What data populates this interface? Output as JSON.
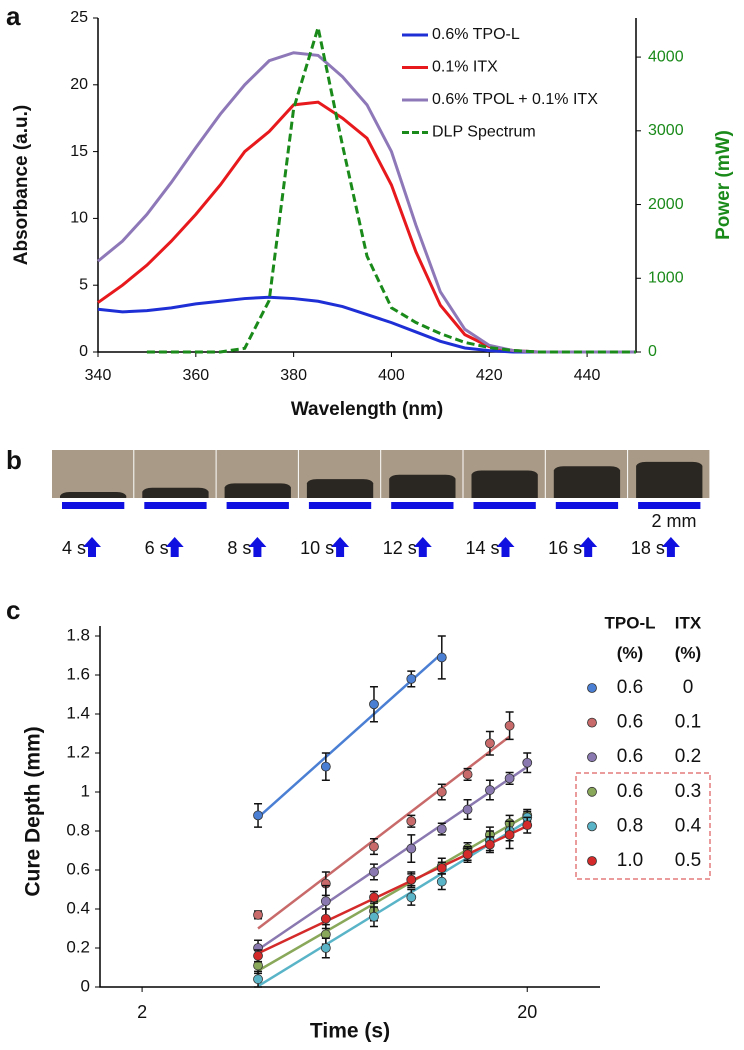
{
  "chart_data": [
    {
      "type": "line",
      "label": "a",
      "xlabel": "Wavelength (nm)",
      "ylabel": "Absorbance (a.u.)",
      "y2label": "Power (mW)",
      "x": [
        340,
        345,
        350,
        355,
        360,
        365,
        370,
        375,
        380,
        385,
        390,
        395,
        400,
        405,
        410,
        415,
        420,
        425,
        430,
        435,
        440,
        445,
        450
      ],
      "xlim": [
        340,
        450
      ],
      "xticks": [
        340,
        360,
        380,
        400,
        420,
        440
      ],
      "ylim": [
        0,
        25
      ],
      "yticks": [
        0,
        5,
        10,
        15,
        20,
        25
      ],
      "y2lim": [
        0,
        4530
      ],
      "y2ticks": [
        0,
        1000,
        2000,
        3000,
        4000
      ],
      "series": [
        {
          "name": "0.6% TPO-L",
          "color": "#1f2fd6",
          "values": [
            3.2,
            3.0,
            3.1,
            3.3,
            3.6,
            3.8,
            4.0,
            4.1,
            4.0,
            3.8,
            3.4,
            2.8,
            2.2,
            1.5,
            0.8,
            0.3,
            0.1,
            0,
            0,
            0,
            0,
            0,
            0
          ]
        },
        {
          "name": "0.1% ITX",
          "color": "#e8191c",
          "values": [
            3.7,
            5.0,
            6.5,
            8.3,
            10.3,
            12.5,
            15.0,
            16.5,
            18.5,
            18.7,
            17.5,
            16.0,
            12.5,
            7.5,
            3.5,
            1.3,
            0.4,
            0.1,
            0,
            0,
            0,
            0,
            0
          ]
        },
        {
          "name": "0.6% TPOL + 0.1% ITX",
          "color": "#8e78b8",
          "values": [
            6.8,
            8.3,
            10.3,
            12.7,
            15.3,
            17.8,
            20.0,
            21.8,
            22.4,
            22.2,
            20.6,
            18.5,
            15.0,
            9.5,
            4.5,
            1.7,
            0.5,
            0.1,
            0,
            0,
            0,
            0,
            0
          ]
        },
        {
          "name": "DLP Spectrum",
          "color": "#1a8a1a",
          "axis": "y2",
          "dashed": true,
          "values": [
            null,
            null,
            0,
            0,
            0,
            0,
            50,
            700,
            3300,
            4400,
            2800,
            1300,
            600,
            400,
            250,
            130,
            60,
            20,
            0,
            0,
            0,
            0,
            0
          ]
        }
      ]
    },
    {
      "type": "scatter",
      "label": "c",
      "xlabel": "Time (s)",
      "ylabel": "Cure Depth (mm)",
      "xscale": "log",
      "xlim": [
        1.555,
        30.9
      ],
      "xticks": [
        2,
        20
      ],
      "ylim": [
        0,
        1.8
      ],
      "yticks": [
        0,
        0.2,
        0.4,
        0.6,
        0.8,
        1,
        1.2,
        1.4,
        1.6,
        1.8
      ],
      "fit": true,
      "legend_headers": [
        [
          "TPO-L",
          "(%)"
        ],
        [
          "ITX",
          "(%)"
        ]
      ],
      "series": [
        {
          "tpo_l": "0.6",
          "itx": "0",
          "color": "#4a7fd4",
          "x": [
            4,
            6,
            8,
            10,
            12
          ],
          "values": [
            0.88,
            1.13,
            1.45,
            1.58,
            1.69
          ],
          "errors": [
            0.06,
            0.07,
            0.09,
            0.04,
            0.11
          ]
        },
        {
          "tpo_l": "0.6",
          "itx": "0.1",
          "color": "#c96a6a",
          "x": [
            4,
            6,
            8,
            10,
            12,
            14,
            16,
            18
          ],
          "values": [
            0.37,
            0.53,
            0.72,
            0.85,
            1.0,
            1.09,
            1.25,
            1.34
          ],
          "errors": [
            0.02,
            0.06,
            0.04,
            0.03,
            0.04,
            0.03,
            0.06,
            0.07
          ]
        },
        {
          "tpo_l": "0.6",
          "itx": "0.2",
          "color": "#8a78b0",
          "x": [
            4,
            6,
            8,
            10,
            12,
            14,
            16,
            18,
            20
          ],
          "values": [
            0.2,
            0.44,
            0.59,
            0.71,
            0.81,
            0.91,
            1.01,
            1.07,
            1.15
          ],
          "errors": [
            0.04,
            0.08,
            0.04,
            0.07,
            0.03,
            0.05,
            0.05,
            0.03,
            0.05
          ]
        },
        {
          "tpo_l": "0.6",
          "itx": "0.3",
          "color": "#8aa85a",
          "x": [
            4,
            6,
            8,
            10,
            12,
            14,
            16,
            18,
            20
          ],
          "values": [
            0.11,
            0.27,
            0.39,
            0.55,
            0.62,
            0.71,
            0.78,
            0.84,
            0.88
          ],
          "errors": [
            0.04,
            0.05,
            0.05,
            0.04,
            0.04,
            0.03,
            0.04,
            0.04,
            0.03
          ]
        },
        {
          "tpo_l": "0.8",
          "itx": "0.4",
          "color": "#5ab4c8",
          "x": [
            4,
            6,
            8,
            10,
            12,
            14,
            16,
            18,
            20
          ],
          "values": [
            0.04,
            0.2,
            0.36,
            0.46,
            0.54,
            0.68,
            0.75,
            0.8,
            0.87
          ],
          "errors": [
            0.04,
            0.05,
            0.05,
            0.04,
            0.04,
            0.04,
            0.05,
            0.05,
            0.03
          ]
        },
        {
          "tpo_l": "1.0",
          "itx": "0.5",
          "color": "#d42a2a",
          "x": [
            4,
            6,
            8,
            10,
            12,
            14,
            16,
            18,
            20
          ],
          "values": [
            0.16,
            0.35,
            0.46,
            0.55,
            0.61,
            0.68,
            0.73,
            0.78,
            0.83
          ],
          "errors": [
            0.03,
            0.05,
            0.03,
            0.03,
            0.03,
            0.03,
            0.04,
            0.07,
            0.04
          ]
        }
      ]
    }
  ],
  "panel_b": {
    "label": "b",
    "times": [
      "4 s",
      "6 s",
      "8 s",
      "10 s",
      "12 s",
      "14 s",
      "16 s",
      "18 s"
    ],
    "scale_bar": "2 mm"
  }
}
